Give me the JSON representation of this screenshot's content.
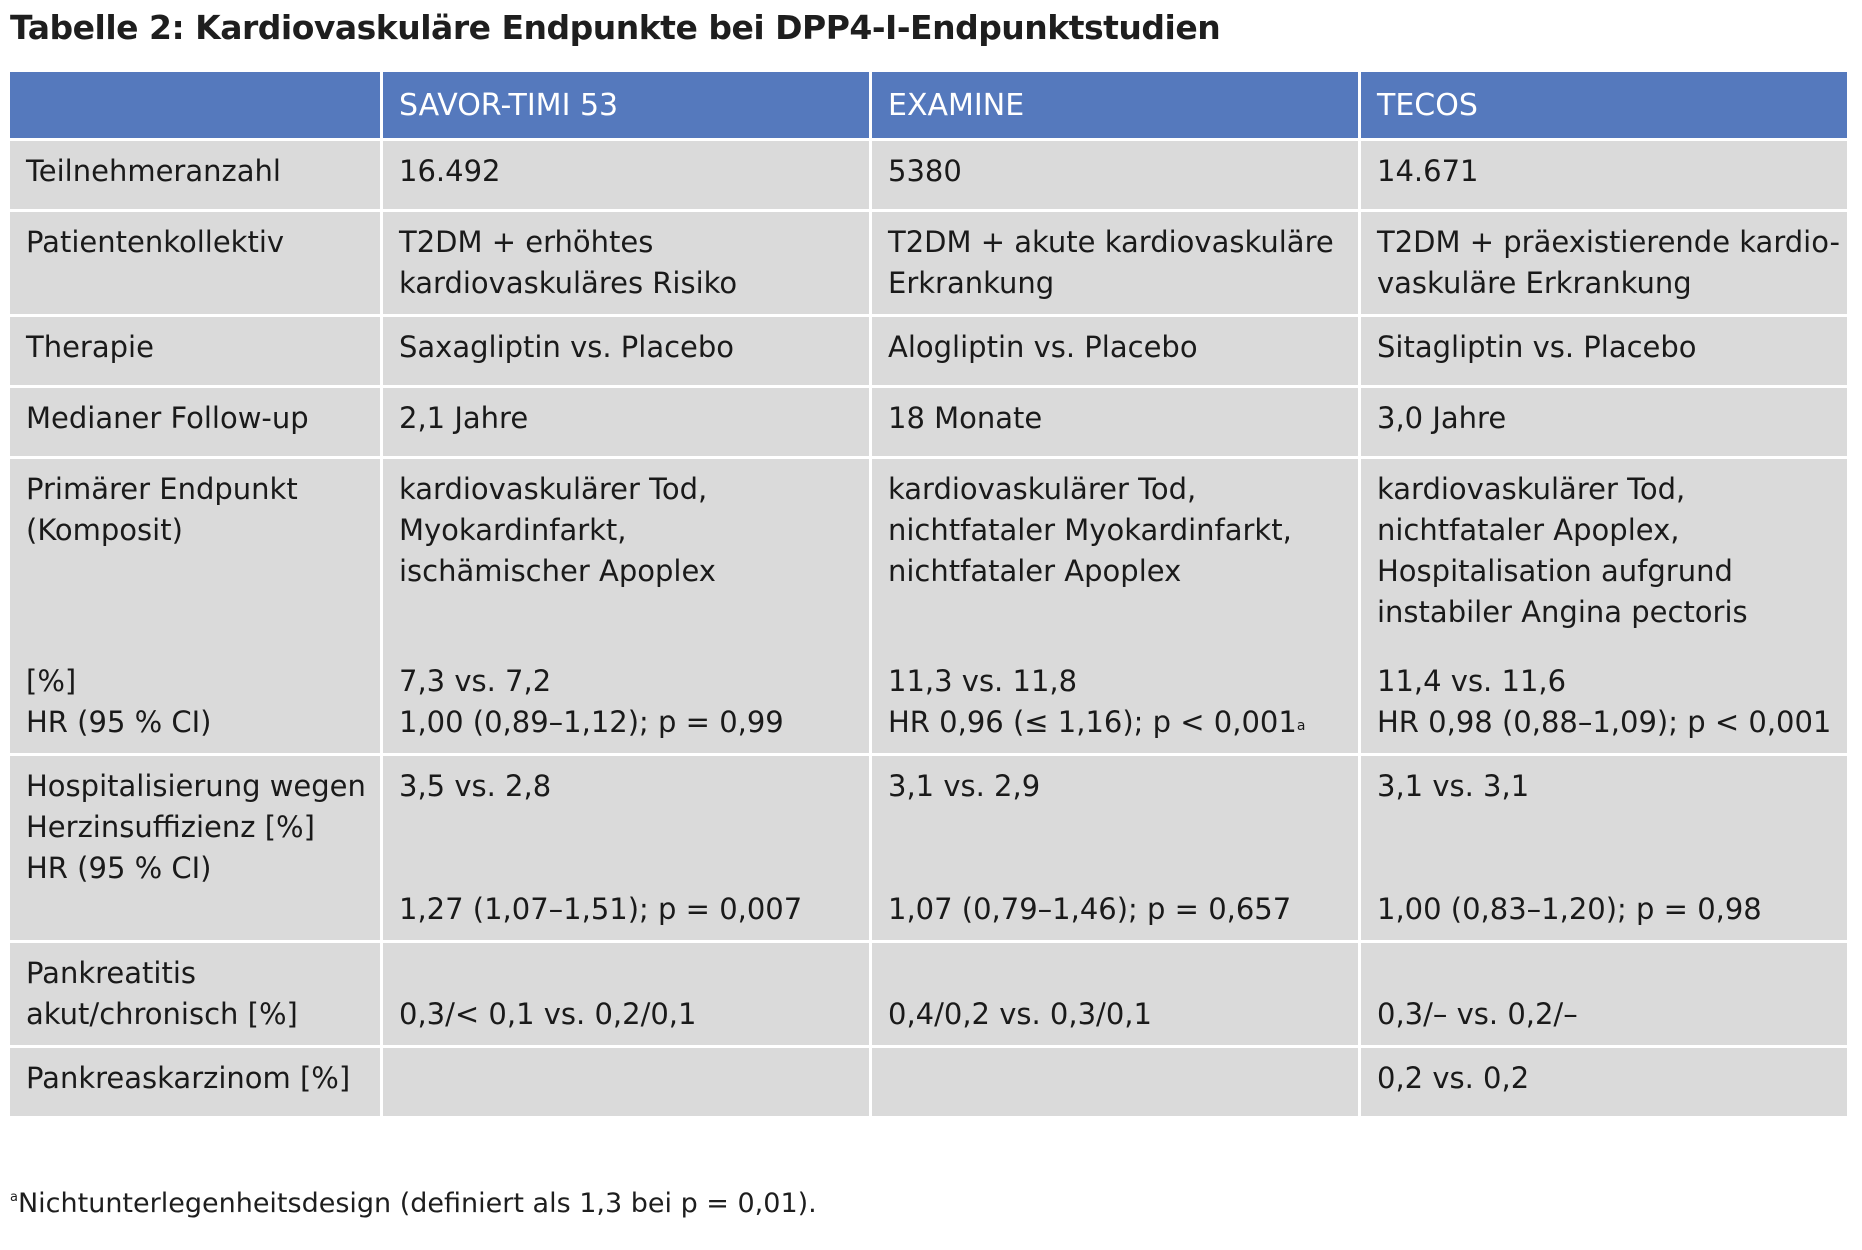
{
  "title": "Tabelle 2: Kardiovaskuläre Endpunkte bei DPP4-I-Endpunktstudien",
  "headers": [
    "",
    "SAVOR-TIMI 53",
    "EXAMINE",
    "TECOS"
  ],
  "rows": {
    "teilnehmer": {
      "label": "Teilnehmeranzahl",
      "values": [
        "16.492",
        "5380",
        "14.671"
      ]
    },
    "kollektiv": {
      "label": "Patientenkollektiv",
      "values": [
        [
          "T2DM + erhöhtes",
          "kardiovaskuläres Risiko"
        ],
        [
          "T2DM + akute kardiovaskuläre",
          "Erkrankung"
        ],
        [
          "T2DM + präexistierende kardio-",
          "vaskuläre Erkrankung"
        ]
      ]
    },
    "therapie": {
      "label": "Therapie",
      "values": [
        "Saxagliptin vs. Placebo",
        "Alogliptin vs. Placebo",
        "Sitagliptin vs. Placebo"
      ]
    },
    "followup": {
      "label": "Medianer Follow-up",
      "values": [
        "2,1 Jahre",
        "18 Monate",
        "3,0 Jahre"
      ]
    },
    "primaer": {
      "label": [
        "Primärer Endpunkt",
        "(Komposit)"
      ],
      "sublabel": [
        "[%]",
        "HR (95 % CI)"
      ],
      "values": [
        [
          "kardiovaskulärer Tod,",
          "Myokardinfarkt,",
          "ischämischer Apoplex"
        ],
        [
          "kardiovaskulärer Tod,",
          "nichtfataler Myokardinfarkt,",
          "nichtfataler Apoplex"
        ],
        [
          "kardiovaskulärer Tod,",
          "nichtfataler Apoplex,",
          "Hospitalisation aufgrund",
          "instabiler Angina pectoris"
        ]
      ],
      "results": [
        [
          "7,3 vs. 7,2",
          "1,00 (0,89–1,12); p = 0,99"
        ],
        [
          "11,3 vs. 11,8",
          "HR 0,96 (≤ 1,16); p < 0,001"
        ],
        [
          "11,4 vs. 11,6",
          "HR 0,98 (0,88–1,09); p < 0,001"
        ]
      ],
      "footnote_marker": "a"
    },
    "herzinsuff": {
      "label": [
        "Hospitalisierung wegen",
        "Herzinsuffizienz [%]",
        "HR (95 % CI)"
      ],
      "values": [
        [
          "3,5 vs. 2,8",
          "1,27 (1,07–1,51); p = 0,007"
        ],
        [
          "3,1 vs. 2,9",
          "1,07 (0,79–1,46); p = 0,657"
        ],
        [
          "3,1 vs. 3,1",
          "1,00 (0,83–1,20); p = 0,98"
        ]
      ]
    },
    "pankreatitis": {
      "label": [
        "Pankreatitis",
        "akut/chronisch [%]"
      ],
      "values": [
        "0,3/< 0,1 vs. 0,2/0,1",
        "0,4/0,2 vs. 0,3/0,1",
        "0,3/– vs. 0,2/–"
      ]
    },
    "karzinom": {
      "label": "Pankreaskarzinom [%]",
      "values": [
        "",
        "",
        "0,2 vs. 0,2"
      ]
    }
  },
  "footnote": {
    "marker": "a",
    "text": "Nichtunterlegenheitsdesign (definiert als 1,3 bei p = 0,01)."
  }
}
